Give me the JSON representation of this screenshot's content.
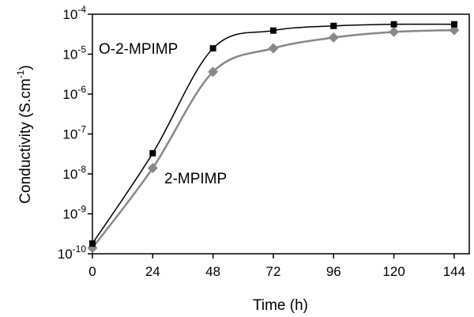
{
  "chart_data": {
    "type": "line",
    "xlabel": "Time (h)",
    "ylabel": {
      "text": "Conductivity (S.cm",
      "sup": "-1",
      "close": ")"
    },
    "x_ticks": [
      0,
      24,
      48,
      72,
      96,
      120,
      144
    ],
    "y_ticks": [
      {
        "value": 1e-10,
        "base": "10",
        "exp": "-10"
      },
      {
        "value": 1e-09,
        "base": "10",
        "exp": "-9"
      },
      {
        "value": 1e-08,
        "base": "10",
        "exp": "-8"
      },
      {
        "value": 1e-07,
        "base": "10",
        "exp": "-7"
      },
      {
        "value": 1e-06,
        "base": "10",
        "exp": "-6"
      },
      {
        "value": 1e-05,
        "base": "10",
        "exp": "-5"
      },
      {
        "value": 0.0001,
        "base": "10",
        "exp": "-4"
      }
    ],
    "y_scale": "log",
    "xlim": [
      0,
      150
    ],
    "ylim": [
      1e-10,
      0.0001
    ],
    "grid": false,
    "series": [
      {
        "name": "O-2-MPIMP",
        "marker": "square",
        "color": "#000000",
        "x": [
          0,
          24,
          48,
          72,
          96,
          120,
          144
        ],
        "y": [
          1.8e-10,
          3.3e-08,
          1.4e-05,
          3.9e-05,
          5.1e-05,
          5.6e-05,
          5.6e-05
        ]
      },
      {
        "name": "2-MPIMP",
        "marker": "diamond",
        "color": "#888888",
        "x": [
          0,
          24,
          48,
          72,
          96,
          120,
          144
        ],
        "y": [
          1.4e-10,
          1.4e-08,
          3.6e-06,
          1.4e-05,
          2.6e-05,
          3.6e-05,
          4e-05
        ]
      }
    ]
  }
}
